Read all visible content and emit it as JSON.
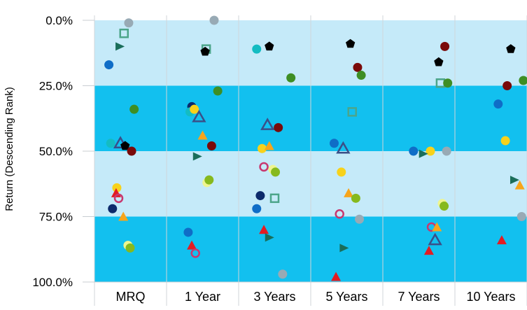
{
  "chart_data": {
    "type": "scatter",
    "title": "",
    "xlabel": "",
    "ylabel": "Return (Descending Rank)",
    "categories": [
      "MRQ",
      "1 Year",
      "3 Years",
      "5 Years",
      "7 Years",
      "10 Years"
    ],
    "y_ticks": [
      "0.0%",
      "25.0%",
      "50.0%",
      "75.0%",
      "100.0%"
    ],
    "ylim": [
      0,
      100
    ],
    "y_reversed": true,
    "bands": [
      {
        "from": 0,
        "to": 25,
        "color": "#c5eaf9"
      },
      {
        "from": 25,
        "to": 50,
        "color": "#12c0ef"
      },
      {
        "from": 50,
        "to": 75,
        "color": "#c5eaf9"
      },
      {
        "from": 75,
        "to": 100,
        "color": "#12c0ef"
      }
    ],
    "grid": "vertical",
    "legend": "none",
    "points": [
      {
        "cat": 0,
        "offset": -0.05,
        "y": 1,
        "shape": "circle",
        "color": "#98aab5"
      },
      {
        "cat": 0,
        "offset": -0.18,
        "y": 5,
        "shape": "square-open",
        "color": "#4ca58a"
      },
      {
        "cat": 0,
        "offset": -0.3,
        "y": 10,
        "shape": "triangle-right",
        "color": "#1a6e5a"
      },
      {
        "cat": 0,
        "offset": -0.6,
        "y": 17,
        "shape": "circle",
        "color": "#0f6dc7"
      },
      {
        "cat": 0,
        "offset": 0.1,
        "y": 34,
        "shape": "circle",
        "color": "#3e8e24"
      },
      {
        "cat": 0,
        "offset": -0.55,
        "y": 47,
        "shape": "circle",
        "color": "#14bcc2"
      },
      {
        "cat": 0,
        "offset": -0.28,
        "y": 47,
        "shape": "triangle-open",
        "color": "#3a4f88"
      },
      {
        "cat": 0,
        "offset": -0.15,
        "y": 48,
        "shape": "pentagon",
        "color": "#000000"
      },
      {
        "cat": 0,
        "offset": 0.03,
        "y": 50,
        "shape": "circle",
        "color": "#7a0a0a"
      },
      {
        "cat": 0,
        "offset": -0.38,
        "y": 64,
        "shape": "circle",
        "color": "#f7d21b"
      },
      {
        "cat": 0,
        "offset": -0.4,
        "y": 66,
        "shape": "triangle",
        "color": "#e31c23"
      },
      {
        "cat": 0,
        "offset": -0.33,
        "y": 68,
        "shape": "circle-open",
        "color": "#c8386f"
      },
      {
        "cat": 0,
        "offset": -0.2,
        "y": 75,
        "shape": "triangle",
        "color": "#f7a51b"
      },
      {
        "cat": 0,
        "offset": -0.5,
        "y": 72,
        "shape": "circle",
        "color": "#0c2a6b"
      },
      {
        "cat": 0,
        "offset": -0.07,
        "y": 86,
        "shape": "circle",
        "color": "#eef590"
      },
      {
        "cat": 0,
        "offset": -0.01,
        "y": 87,
        "shape": "circle",
        "color": "#86b91e"
      },
      {
        "cat": 1,
        "offset": 0.32,
        "y": 0,
        "shape": "circle",
        "color": "#98aab5"
      },
      {
        "cat": 1,
        "offset": 0.1,
        "y": 11,
        "shape": "square-open",
        "color": "#4ca58a"
      },
      {
        "cat": 1,
        "offset": 0.07,
        "y": 12,
        "shape": "pentagon",
        "color": "#000000"
      },
      {
        "cat": 1,
        "offset": 0.42,
        "y": 27,
        "shape": "circle",
        "color": "#3e8e24"
      },
      {
        "cat": 1,
        "offset": -0.3,
        "y": 33,
        "shape": "circle",
        "color": "#0c2a6b"
      },
      {
        "cat": 1,
        "offset": -0.35,
        "y": 35,
        "shape": "circle",
        "color": "#14bcc2"
      },
      {
        "cat": 1,
        "offset": -0.23,
        "y": 34,
        "shape": "circle",
        "color": "#f7d21b"
      },
      {
        "cat": 1,
        "offset": -0.1,
        "y": 37,
        "shape": "triangle-open",
        "color": "#3a4f88"
      },
      {
        "cat": 1,
        "offset": 0.0,
        "y": 44,
        "shape": "triangle",
        "color": "#f7a51b"
      },
      {
        "cat": 1,
        "offset": 0.25,
        "y": 48,
        "shape": "circle",
        "color": "#7a0a0a"
      },
      {
        "cat": 1,
        "offset": -0.15,
        "y": 52,
        "shape": "triangle-right",
        "color": "#1a6e5a"
      },
      {
        "cat": 1,
        "offset": 0.12,
        "y": 62,
        "shape": "circle",
        "color": "#eef590"
      },
      {
        "cat": 1,
        "offset": 0.18,
        "y": 61,
        "shape": "circle",
        "color": "#86b91e"
      },
      {
        "cat": 1,
        "offset": -0.4,
        "y": 81,
        "shape": "circle",
        "color": "#0f6dc7"
      },
      {
        "cat": 1,
        "offset": -0.3,
        "y": 86,
        "shape": "triangle",
        "color": "#e31c23"
      },
      {
        "cat": 1,
        "offset": -0.2,
        "y": 89,
        "shape": "circle-open",
        "color": "#c8386f"
      },
      {
        "cat": 2,
        "offset": -0.5,
        "y": 11,
        "shape": "circle",
        "color": "#14bcc2"
      },
      {
        "cat": 2,
        "offset": -0.15,
        "y": 10,
        "shape": "pentagon",
        "color": "#000000"
      },
      {
        "cat": 2,
        "offset": 0.45,
        "y": 22,
        "shape": "circle",
        "color": "#3e8e24"
      },
      {
        "cat": 2,
        "offset": -0.2,
        "y": 40,
        "shape": "triangle-open",
        "color": "#3a4f88"
      },
      {
        "cat": 2,
        "offset": 0.1,
        "y": 41,
        "shape": "circle",
        "color": "#7a0a0a"
      },
      {
        "cat": 2,
        "offset": -0.35,
        "y": 49,
        "shape": "circle",
        "color": "#f7d21b"
      },
      {
        "cat": 2,
        "offset": -0.15,
        "y": 48,
        "shape": "triangle",
        "color": "#f7a51b"
      },
      {
        "cat": 2,
        "offset": -0.3,
        "y": 56,
        "shape": "circle-open",
        "color": "#c8386f"
      },
      {
        "cat": 2,
        "offset": -0.05,
        "y": 57,
        "shape": "circle",
        "color": "#eef590"
      },
      {
        "cat": 2,
        "offset": 0.02,
        "y": 58,
        "shape": "circle",
        "color": "#86b91e"
      },
      {
        "cat": 2,
        "offset": -0.4,
        "y": 67,
        "shape": "circle",
        "color": "#0c2a6b"
      },
      {
        "cat": 2,
        "offset": 0.0,
        "y": 68,
        "shape": "square-open",
        "color": "#4ca58a"
      },
      {
        "cat": 2,
        "offset": -0.5,
        "y": 72,
        "shape": "circle",
        "color": "#0f6dc7"
      },
      {
        "cat": 2,
        "offset": -0.3,
        "y": 80,
        "shape": "triangle",
        "color": "#e31c23"
      },
      {
        "cat": 2,
        "offset": -0.15,
        "y": 83,
        "shape": "triangle-right",
        "color": "#1a6e5a"
      },
      {
        "cat": 2,
        "offset": 0.22,
        "y": 97,
        "shape": "circle",
        "color": "#98aab5"
      },
      {
        "cat": 3,
        "offset": 0.1,
        "y": 9,
        "shape": "pentagon",
        "color": "#000000"
      },
      {
        "cat": 3,
        "offset": 0.3,
        "y": 18,
        "shape": "circle",
        "color": "#7a0a0a"
      },
      {
        "cat": 3,
        "offset": 0.4,
        "y": 21,
        "shape": "circle",
        "color": "#3e8e24"
      },
      {
        "cat": 3,
        "offset": 0.15,
        "y": 35,
        "shape": "square-open",
        "color": "#4ca58a"
      },
      {
        "cat": 3,
        "offset": -0.35,
        "y": 47,
        "shape": "circle",
        "color": "#0f6dc7"
      },
      {
        "cat": 3,
        "offset": -0.1,
        "y": 49,
        "shape": "triangle-open",
        "color": "#3a4f88"
      },
      {
        "cat": 3,
        "offset": -0.15,
        "y": 58,
        "shape": "circle",
        "color": "#f7d21b"
      },
      {
        "cat": 3,
        "offset": 0.05,
        "y": 66,
        "shape": "triangle",
        "color": "#f7a51b"
      },
      {
        "cat": 3,
        "offset": 0.25,
        "y": 68,
        "shape": "circle",
        "color": "#86b91e"
      },
      {
        "cat": 3,
        "offset": -0.2,
        "y": 74,
        "shape": "circle-open",
        "color": "#c8386f"
      },
      {
        "cat": 3,
        "offset": 0.35,
        "y": 76,
        "shape": "circle",
        "color": "#98aab5"
      },
      {
        "cat": 3,
        "offset": -0.08,
        "y": 87,
        "shape": "triangle-right",
        "color": "#1a6e5a"
      },
      {
        "cat": 3,
        "offset": -0.3,
        "y": 98,
        "shape": "triangle",
        "color": "#e31c23"
      },
      {
        "cat": 4,
        "offset": 0.55,
        "y": 16,
        "shape": "pentagon",
        "color": "#000000"
      },
      {
        "cat": 4,
        "offset": 0.72,
        "y": 10,
        "shape": "circle",
        "color": "#7a0a0a"
      },
      {
        "cat": 4,
        "offset": 0.6,
        "y": 24,
        "shape": "square-open",
        "color": "#4ca58a"
      },
      {
        "cat": 4,
        "offset": 0.8,
        "y": 24,
        "shape": "circle",
        "color": "#3e8e24"
      },
      {
        "cat": 4,
        "offset": -0.15,
        "y": 50,
        "shape": "circle",
        "color": "#0f6dc7"
      },
      {
        "cat": 4,
        "offset": 0.32,
        "y": 50,
        "shape": "circle",
        "color": "#f7d21b"
      },
      {
        "cat": 4,
        "offset": 0.12,
        "y": 51,
        "shape": "triangle-right",
        "color": "#1a6e5a"
      },
      {
        "cat": 4,
        "offset": 0.77,
        "y": 50,
        "shape": "circle",
        "color": "#98aab5"
      },
      {
        "cat": 4,
        "offset": 0.65,
        "y": 70,
        "shape": "circle",
        "color": "#eef590"
      },
      {
        "cat": 4,
        "offset": 0.7,
        "y": 71,
        "shape": "circle",
        "color": "#86b91e"
      },
      {
        "cat": 4,
        "offset": 0.35,
        "y": 79,
        "shape": "circle-open",
        "color": "#c8386f"
      },
      {
        "cat": 4,
        "offset": 0.5,
        "y": 79,
        "shape": "triangle",
        "color": "#f7a51b"
      },
      {
        "cat": 4,
        "offset": 0.45,
        "y": 84,
        "shape": "triangle-open",
        "color": "#3a4f88"
      },
      {
        "cat": 4,
        "offset": 0.28,
        "y": 88,
        "shape": "triangle",
        "color": "#e31c23"
      },
      {
        "cat": 5,
        "offset": 0.55,
        "y": 11,
        "shape": "pentagon",
        "color": "#000000"
      },
      {
        "cat": 5,
        "offset": 0.45,
        "y": 25,
        "shape": "circle",
        "color": "#7a0a0a"
      },
      {
        "cat": 5,
        "offset": 0.9,
        "y": 23,
        "shape": "circle",
        "color": "#3e8e24"
      },
      {
        "cat": 5,
        "offset": 0.2,
        "y": 32,
        "shape": "circle",
        "color": "#0f6dc7"
      },
      {
        "cat": 5,
        "offset": 0.4,
        "y": 46,
        "shape": "circle",
        "color": "#f7d21b"
      },
      {
        "cat": 5,
        "offset": 0.65,
        "y": 61,
        "shape": "triangle-right",
        "color": "#1a6e5a"
      },
      {
        "cat": 5,
        "offset": 0.8,
        "y": 63,
        "shape": "triangle",
        "color": "#f7a51b"
      },
      {
        "cat": 5,
        "offset": 0.85,
        "y": 75,
        "shape": "circle",
        "color": "#98aab5"
      },
      {
        "cat": 5,
        "offset": 0.3,
        "y": 84,
        "shape": "triangle",
        "color": "#e31c23"
      }
    ]
  }
}
